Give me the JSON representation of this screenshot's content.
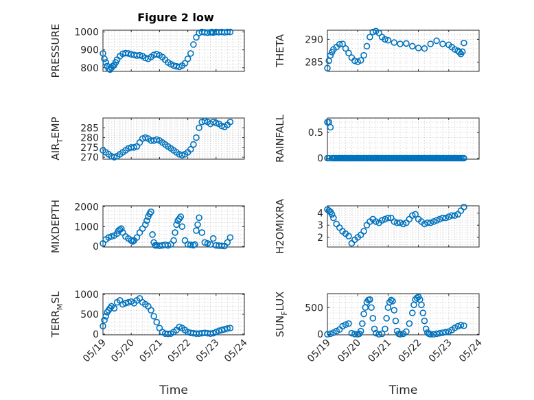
{
  "figure": {
    "title": "Figure 2 low",
    "marker_color": "#0072BD",
    "x_tick_labels": [
      "05/19",
      "05/20",
      "05/21",
      "05/22",
      "05/23",
      "05/24"
    ]
  },
  "chart_data": [
    {
      "type": "scatter",
      "panel": "left-1",
      "ylabel": "PRESSURE",
      "title": "Figure 2 low",
      "xlabel": "",
      "xlim": [
        0,
        5
      ],
      "ylim": [
        780,
        1010
      ],
      "yticks": [
        800,
        900,
        1000
      ],
      "xtick_values": [
        0,
        1,
        2,
        3,
        4,
        5
      ],
      "x": [
        0,
        0.05,
        0.1,
        0.15,
        0.2,
        0.25,
        0.3,
        0.35,
        0.4,
        0.45,
        0.5,
        0.6,
        0.7,
        0.8,
        0.9,
        1.0,
        1.1,
        1.2,
        1.3,
        1.4,
        1.5,
        1.6,
        1.7,
        1.8,
        1.9,
        2.0,
        2.1,
        2.2,
        2.3,
        2.4,
        2.5,
        2.6,
        2.7,
        2.8,
        2.9,
        3.0,
        3.1,
        3.2,
        3.3,
        3.4,
        3.5,
        3.6,
        3.7,
        3.8,
        3.85,
        3.9,
        4.0,
        4.1,
        4.2,
        4.3,
        4.4,
        4.5
      ],
      "y": [
        880,
        850,
        830,
        810,
        795,
        790,
        800,
        810,
        815,
        830,
        845,
        865,
        878,
        882,
        880,
        875,
        872,
        868,
        870,
        865,
        855,
        850,
        860,
        872,
        876,
        870,
        860,
        845,
        830,
        820,
        812,
        808,
        805,
        812,
        825,
        850,
        880,
        930,
        970,
        995,
        1000,
        998,
        996,
        998,
        1000,
        997,
        1000,
        999,
        1000,
        998,
        1000,
        1000
      ]
    },
    {
      "type": "scatter",
      "panel": "right-1",
      "ylabel": "THETA",
      "xlim": [
        0,
        5
      ],
      "ylim": [
        283,
        292
      ],
      "yticks": [
        285,
        290
      ],
      "xtick_values": [
        0,
        1,
        2,
        3,
        4,
        5
      ],
      "x": [
        0,
        0.05,
        0.1,
        0.15,
        0.2,
        0.3,
        0.4,
        0.5,
        0.6,
        0.7,
        0.8,
        0.9,
        1.0,
        1.1,
        1.2,
        1.3,
        1.4,
        1.5,
        1.6,
        1.7,
        1.8,
        1.9,
        2.0,
        2.2,
        2.4,
        2.6,
        2.8,
        3.0,
        3.2,
        3.4,
        3.6,
        3.8,
        4.0,
        4.1,
        4.2,
        4.3,
        4.35,
        4.4,
        4.45,
        4.5
      ],
      "y": [
        283.7,
        285.3,
        286.5,
        287.2,
        287.8,
        288.3,
        288.9,
        289.0,
        288.0,
        287.0,
        286.0,
        285.3,
        285.1,
        285.4,
        286.5,
        288.5,
        290.5,
        291.6,
        291.8,
        291.4,
        290.5,
        290.0,
        289.8,
        289.3,
        289.0,
        289.1,
        288.5,
        288.1,
        288.0,
        289.0,
        289.7,
        289.0,
        288.8,
        288.3,
        287.8,
        287.5,
        287.2,
        286.8,
        287.3,
        289.2
      ]
    },
    {
      "type": "scatter",
      "panel": "left-2",
      "ylabel": "AIR_TEMP",
      "xlim": [
        0,
        5
      ],
      "ylim": [
        269,
        290
      ],
      "yticks": [
        270,
        275,
        280,
        285
      ],
      "xtick_values": [
        0,
        1,
        2,
        3,
        4,
        5
      ],
      "x": [
        0,
        0.1,
        0.2,
        0.3,
        0.4,
        0.5,
        0.6,
        0.7,
        0.8,
        0.9,
        1.0,
        1.1,
        1.2,
        1.3,
        1.4,
        1.5,
        1.6,
        1.7,
        1.8,
        1.9,
        2.0,
        2.1,
        2.2,
        2.3,
        2.4,
        2.5,
        2.6,
        2.7,
        2.8,
        2.9,
        3.0,
        3.1,
        3.2,
        3.3,
        3.4,
        3.5,
        3.6,
        3.7,
        3.8,
        3.9,
        4.0,
        4.1,
        4.2,
        4.3,
        4.4,
        4.5
      ],
      "y": [
        273.5,
        272.5,
        271.5,
        270.5,
        270.0,
        270.5,
        271.5,
        272.5,
        273.5,
        274.5,
        275.0,
        275.0,
        275.5,
        277.5,
        279.5,
        280.0,
        279.5,
        278.5,
        278.5,
        279.0,
        278.5,
        277.5,
        276.5,
        275.5,
        274.5,
        273.5,
        272.5,
        271.5,
        271.0,
        271.5,
        272.5,
        274.0,
        276.5,
        280.0,
        285.0,
        288.0,
        288.5,
        288.0,
        287.0,
        288.0,
        287.5,
        287.0,
        286.0,
        285.5,
        286.5,
        288.0
      ]
    },
    {
      "type": "scatter",
      "panel": "right-2",
      "ylabel": "RAINFALL",
      "xlim": [
        0,
        5
      ],
      "ylim": [
        -0.02,
        0.78
      ],
      "yticks": [
        0,
        0.5
      ],
      "xtick_values": [
        0,
        1,
        2,
        3,
        4,
        5
      ],
      "x": [
        0,
        0.05,
        0.1,
        0.15,
        0.2,
        0.25,
        0.3,
        0.35,
        0.4,
        0.45,
        0.5,
        0.55,
        0.6,
        0.65,
        0.7,
        0.75,
        0.8,
        0.85,
        0.9,
        0.95,
        1.0,
        1.05,
        1.1,
        1.15,
        1.2,
        1.25,
        1.3,
        1.35,
        1.4,
        1.45,
        1.5,
        1.55,
        1.6,
        1.65,
        1.7,
        1.75,
        1.8,
        1.85,
        1.9,
        1.95,
        2.0,
        2.05,
        2.1,
        2.15,
        2.2,
        2.25,
        2.3,
        2.35,
        2.4,
        2.45,
        2.5,
        2.55,
        2.6,
        2.65,
        2.7,
        2.75,
        2.8,
        2.85,
        2.9,
        2.95,
        3.0,
        3.05,
        3.1,
        3.15,
        3.2,
        3.25,
        3.3,
        3.35,
        3.4,
        3.45,
        3.5,
        3.55,
        3.6,
        3.65,
        3.7,
        3.75,
        3.8,
        3.85,
        3.9,
        3.95,
        4.0,
        4.05,
        4.1,
        4.15,
        4.2,
        4.25,
        4.3,
        4.35,
        4.4,
        4.45,
        4.5,
        0,
        0.05
      ],
      "y": [
        0.7,
        0.7,
        0.6,
        0,
        0,
        0,
        0,
        0,
        0,
        0,
        0,
        0,
        0,
        0,
        0,
        0,
        0,
        0,
        0,
        0,
        0,
        0,
        0,
        0,
        0,
        0,
        0,
        0,
        0,
        0,
        0,
        0,
        0,
        0,
        0,
        0,
        0,
        0,
        0,
        0,
        0,
        0,
        0,
        0,
        0,
        0,
        0,
        0,
        0,
        0,
        0,
        0,
        0,
        0,
        0,
        0,
        0,
        0,
        0,
        0,
        0,
        0,
        0,
        0,
        0,
        0,
        0,
        0,
        0,
        0,
        0,
        0,
        0,
        0,
        0,
        0,
        0,
        0,
        0,
        0,
        0,
        0,
        0,
        0,
        0,
        0,
        0,
        0,
        0,
        0,
        0,
        0,
        0
      ]
    },
    {
      "type": "scatter",
      "panel": "left-3",
      "ylabel": "MIXDEPTH",
      "xlim": [
        0,
        5
      ],
      "ylim": [
        -30,
        2050
      ],
      "yticks": [
        0,
        1000,
        2000
      ],
      "xtick_values": [
        0,
        1,
        2,
        3,
        4,
        5
      ],
      "x": [
        0,
        0.1,
        0.2,
        0.3,
        0.4,
        0.5,
        0.55,
        0.6,
        0.65,
        0.7,
        0.8,
        0.9,
        1.0,
        1.05,
        1.1,
        1.2,
        1.3,
        1.4,
        1.5,
        1.55,
        1.6,
        1.65,
        1.7,
        1.75,
        1.8,
        1.85,
        1.9,
        2.0,
        2.1,
        2.2,
        2.3,
        2.4,
        2.5,
        2.55,
        2.6,
        2.65,
        2.7,
        2.75,
        2.8,
        2.9,
        3.0,
        3.1,
        3.2,
        3.25,
        3.3,
        3.35,
        3.4,
        3.5,
        3.6,
        3.7,
        3.8,
        3.9,
        4.0,
        4.1,
        4.2,
        4.3,
        4.4,
        4.5
      ],
      "y": [
        150,
        350,
        450,
        500,
        550,
        650,
        800,
        850,
        900,
        700,
        500,
        400,
        300,
        250,
        300,
        450,
        700,
        900,
        1100,
        1300,
        1500,
        1650,
        1750,
        600,
        200,
        50,
        50,
        30,
        50,
        80,
        50,
        100,
        300,
        700,
        1100,
        1300,
        1400,
        1500,
        1000,
        300,
        100,
        80,
        60,
        100,
        800,
        1100,
        1450,
        700,
        200,
        150,
        100,
        400,
        50,
        40,
        30,
        20,
        200,
        450
      ]
    },
    {
      "type": "scatter",
      "panel": "right-3",
      "ylabel": "H2OMIXRA",
      "xlim": [
        0,
        5
      ],
      "ylim": [
        1.2,
        4.6
      ],
      "yticks": [
        2,
        3,
        4
      ],
      "xtick_values": [
        0,
        1,
        2,
        3,
        4,
        5
      ],
      "x": [
        0,
        0.05,
        0.1,
        0.15,
        0.2,
        0.3,
        0.4,
        0.5,
        0.6,
        0.7,
        0.8,
        0.9,
        1.0,
        1.1,
        1.2,
        1.3,
        1.4,
        1.5,
        1.6,
        1.7,
        1.8,
        1.9,
        2.0,
        2.1,
        2.2,
        2.3,
        2.4,
        2.5,
        2.6,
        2.7,
        2.8,
        2.9,
        3.0,
        3.1,
        3.2,
        3.3,
        3.4,
        3.5,
        3.6,
        3.7,
        3.8,
        3.9,
        4.0,
        4.1,
        4.2,
        4.3,
        4.4,
        4.5
      ],
      "y": [
        4.3,
        4.2,
        4.1,
        3.9,
        3.6,
        3.1,
        2.8,
        2.5,
        2.3,
        2.1,
        1.5,
        1.8,
        2.0,
        2.2,
        2.5,
        3.0,
        3.3,
        3.5,
        3.3,
        3.2,
        3.4,
        3.5,
        3.6,
        3.6,
        3.3,
        3.2,
        3.2,
        3.1,
        3.2,
        3.5,
        3.8,
        3.9,
        3.5,
        3.3,
        3.1,
        3.2,
        3.2,
        3.3,
        3.4,
        3.5,
        3.6,
        3.6,
        3.7,
        3.8,
        3.8,
        3.9,
        4.2,
        4.5
      ]
    },
    {
      "type": "scatter",
      "panel": "left-4",
      "ylabel": "TERR_MSL",
      "xlabel": "Time",
      "xlim": [
        0,
        5
      ],
      "ylim": [
        -20,
        1020
      ],
      "yticks": [
        0,
        500,
        1000
      ],
      "xtick_values": [
        0,
        1,
        2,
        3,
        4,
        5
      ],
      "x": [
        0,
        0.05,
        0.1,
        0.15,
        0.2,
        0.25,
        0.3,
        0.4,
        0.5,
        0.6,
        0.7,
        0.8,
        0.9,
        1.0,
        1.1,
        1.2,
        1.3,
        1.4,
        1.5,
        1.6,
        1.7,
        1.8,
        1.9,
        2.0,
        2.1,
        2.2,
        2.3,
        2.4,
        2.5,
        2.6,
        2.7,
        2.8,
        2.9,
        3.0,
        3.1,
        3.2,
        3.3,
        3.4,
        3.5,
        3.6,
        3.7,
        3.8,
        3.9,
        4.0,
        4.1,
        4.2,
        4.3,
        4.4,
        4.5
      ],
      "y": [
        200,
        350,
        450,
        550,
        600,
        650,
        700,
        650,
        800,
        850,
        750,
        780,
        800,
        820,
        780,
        850,
        900,
        800,
        750,
        700,
        600,
        450,
        300,
        150,
        50,
        10,
        5,
        10,
        50,
        100,
        180,
        150,
        100,
        50,
        30,
        20,
        10,
        10,
        20,
        30,
        20,
        10,
        20,
        50,
        80,
        100,
        120,
        140,
        150
      ]
    },
    {
      "type": "scatter",
      "panel": "right-4",
      "ylabel": "SUN_FLUX",
      "xlabel": "Time",
      "xlim": [
        0,
        5
      ],
      "ylim": [
        -10,
        760
      ],
      "yticks": [
        0,
        500
      ],
      "xtick_values": [
        0,
        1,
        2,
        3,
        4,
        5
      ],
      "x": [
        0,
        0.1,
        0.2,
        0.3,
        0.4,
        0.5,
        0.6,
        0.7,
        0.8,
        0.9,
        1.0,
        1.05,
        1.1,
        1.15,
        1.2,
        1.25,
        1.3,
        1.35,
        1.4,
        1.45,
        1.5,
        1.55,
        1.6,
        1.7,
        1.8,
        1.9,
        1.95,
        2.0,
        2.05,
        2.1,
        2.15,
        2.2,
        2.25,
        2.3,
        2.35,
        2.4,
        2.5,
        2.6,
        2.7,
        2.8,
        2.85,
        2.9,
        2.95,
        3.0,
        3.05,
        3.1,
        3.15,
        3.2,
        3.25,
        3.3,
        3.35,
        3.4,
        3.5,
        3.6,
        3.7,
        3.8,
        3.9,
        4.0,
        4.1,
        4.2,
        4.3,
        4.4,
        4.5
      ],
      "y": [
        0,
        10,
        30,
        60,
        90,
        150,
        180,
        200,
        20,
        5,
        0,
        10,
        60,
        200,
        380,
        500,
        600,
        640,
        650,
        500,
        300,
        100,
        20,
        0,
        10,
        100,
        300,
        500,
        600,
        640,
        620,
        450,
        250,
        60,
        10,
        0,
        10,
        50,
        200,
        400,
        550,
        650,
        680,
        700,
        650,
        550,
        400,
        250,
        100,
        30,
        10,
        0,
        0,
        10,
        20,
        30,
        40,
        50,
        80,
        120,
        150,
        170,
        160
      ]
    }
  ]
}
